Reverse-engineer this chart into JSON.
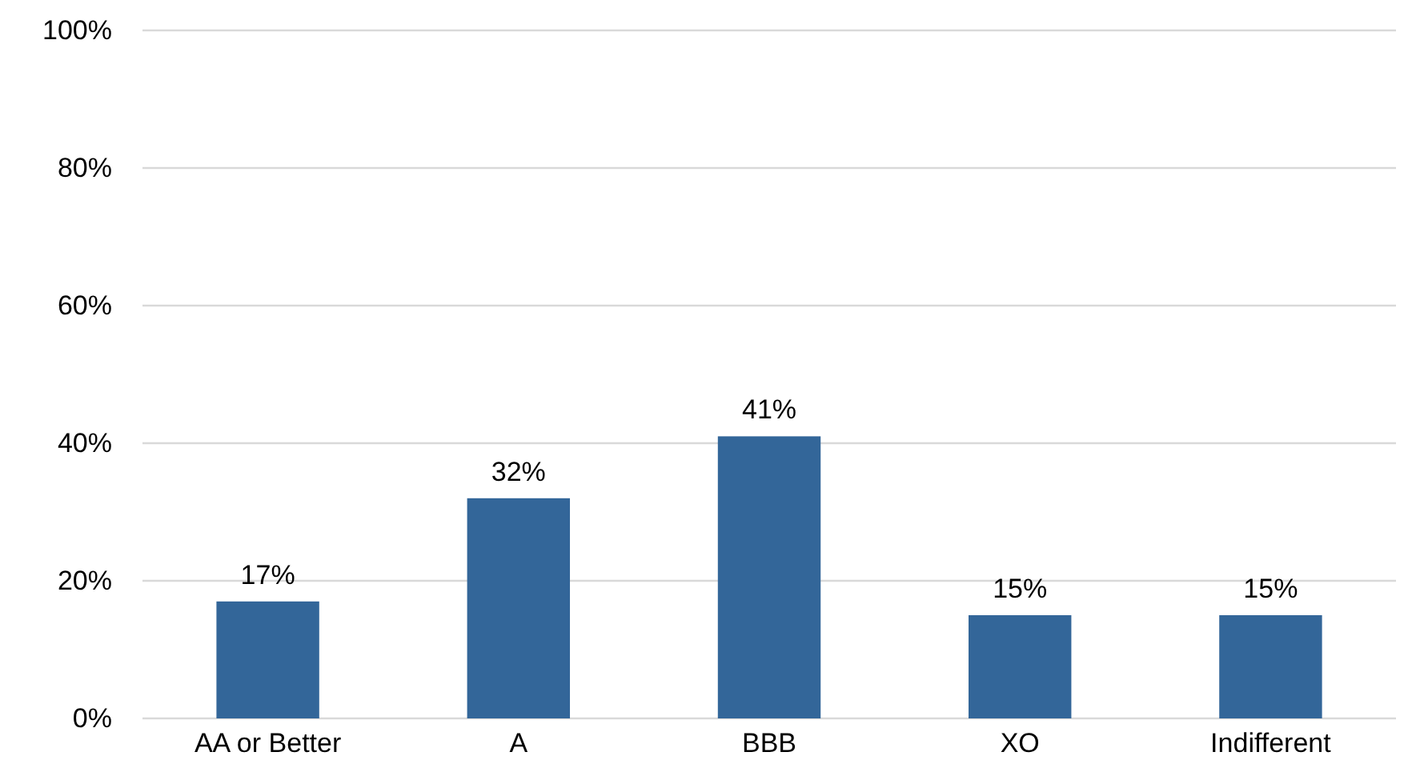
{
  "chart_data": {
    "type": "bar",
    "categories": [
      "AA or Better",
      "A",
      "BBB",
      "XO",
      "Indifferent"
    ],
    "values": [
      17,
      32,
      41,
      15,
      15
    ],
    "value_labels": [
      "17%",
      "32%",
      "41%",
      "15%",
      "15%"
    ],
    "color": "#336699",
    "ylim": [
      0,
      100
    ],
    "yticks": [
      {
        "value": 0,
        "label": "0%"
      },
      {
        "value": 20,
        "label": "20%"
      },
      {
        "value": 40,
        "label": "40%"
      },
      {
        "value": 60,
        "label": "60%"
      },
      {
        "value": 80,
        "label": "80%"
      },
      {
        "value": 100,
        "label": "100%"
      }
    ],
    "grid": "y"
  }
}
